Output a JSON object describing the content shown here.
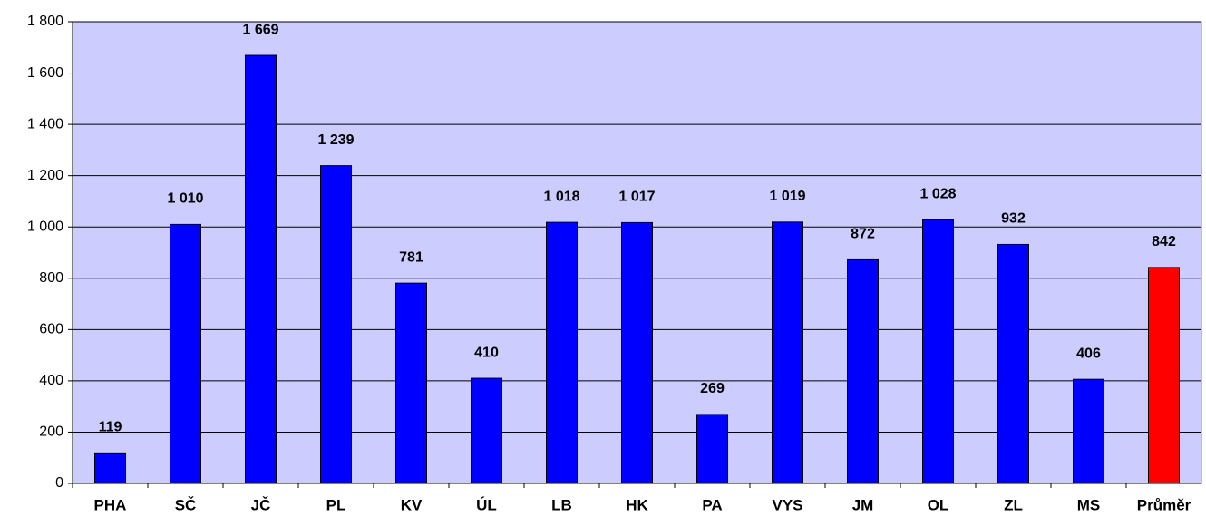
{
  "chart_data": {
    "type": "bar",
    "categories": [
      "PHA",
      "SČ",
      "JČ",
      "PL",
      "KV",
      "ÚL",
      "LB",
      "HK",
      "PA",
      "VYS",
      "JM",
      "OL",
      "ZL",
      "MS",
      "Průměr"
    ],
    "values": [
      119,
      1010,
      1669,
      1239,
      781,
      410,
      1018,
      1017,
      269,
      1019,
      872,
      1028,
      932,
      406,
      842
    ],
    "value_labels": [
      "119",
      "1 010",
      "1 669",
      "1 239",
      "781",
      "410",
      "1 018",
      "1 017",
      "269",
      "1 019",
      "872",
      "1 028",
      "932",
      "406",
      "842"
    ],
    "colors": [
      "#0000ff",
      "#0000ff",
      "#0000ff",
      "#0000ff",
      "#0000ff",
      "#0000ff",
      "#0000ff",
      "#0000ff",
      "#0000ff",
      "#0000ff",
      "#0000ff",
      "#0000ff",
      "#0000ff",
      "#0000ff",
      "#ff0000"
    ],
    "ylim": [
      0,
      1800
    ],
    "yticks": [
      0,
      200,
      400,
      600,
      800,
      {
        "value": 1000,
        "label": "1 000"
      },
      {
        "value": 1200,
        "label": "1 200"
      },
      {
        "value": 1400,
        "label": "1 400"
      },
      {
        "value": 1600,
        "label": "1 600"
      },
      {
        "value": 1800,
        "label": "1 800"
      }
    ],
    "grid": true,
    "plot_background": "#ccccff"
  }
}
